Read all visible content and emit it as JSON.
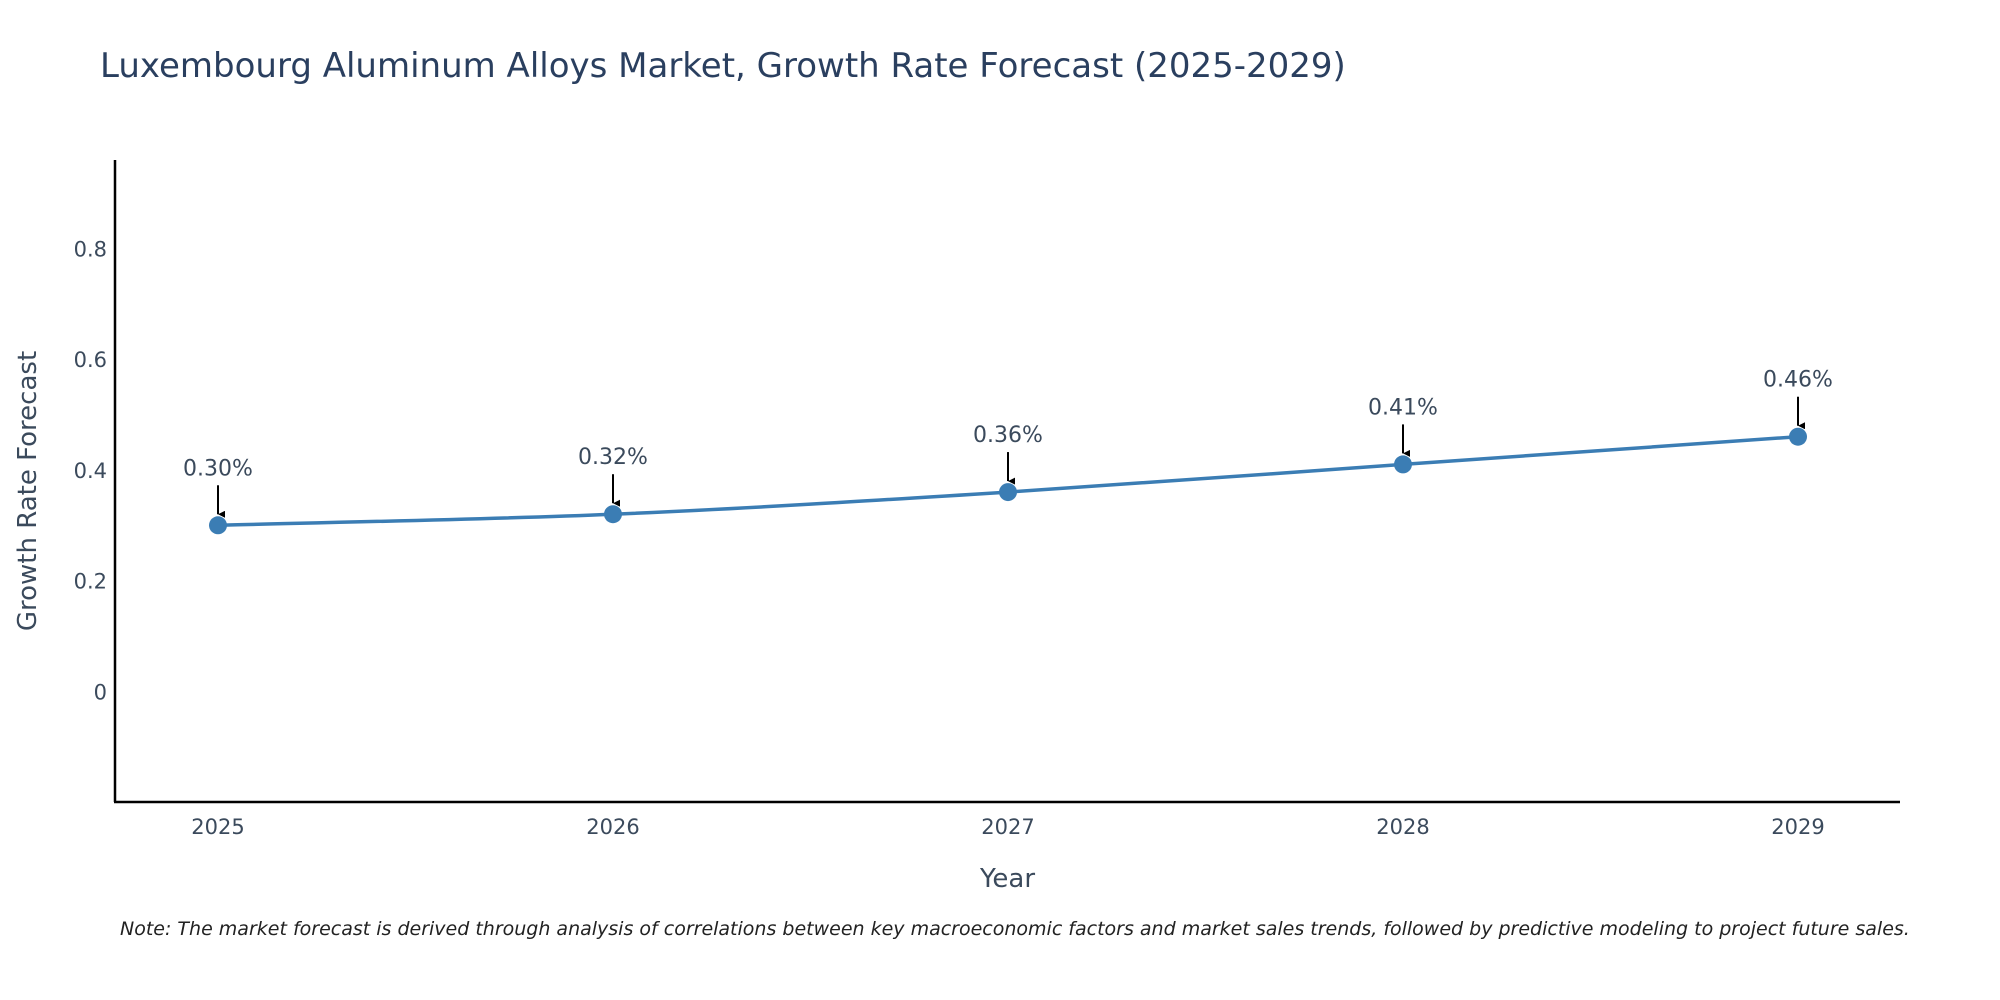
{
  "chart_data": {
    "type": "line",
    "title": "Luxembourg Aluminum Alloys Market, Growth Rate Forecast (2025-2029)",
    "xlabel": "Year",
    "ylabel": "Growth Rate Forecast",
    "categories": [
      "2025",
      "2026",
      "2027",
      "2028",
      "2029"
    ],
    "series": [
      {
        "name": "Growth Rate Forecast",
        "values": [
          0.3,
          0.32,
          0.36,
          0.41,
          0.46
        ],
        "labels": [
          "0.30%",
          "0.32%",
          "0.36%",
          "0.41%",
          "0.46%"
        ],
        "color": "#3b7db4"
      }
    ],
    "ylim": [
      -0.2,
      0.96
    ],
    "yticks": [
      0,
      0.2,
      0.4,
      0.6,
      0.8
    ],
    "ytick_labels": [
      "0",
      "0.2",
      "0.4",
      "0.6",
      "0.8"
    ],
    "grid": false,
    "annotation_arrow_color": "#000000"
  },
  "note": "Note: The market forecast is derived through analysis of correlations between key macroeconomic factors and market sales trends, followed by predictive modeling to project future sales."
}
